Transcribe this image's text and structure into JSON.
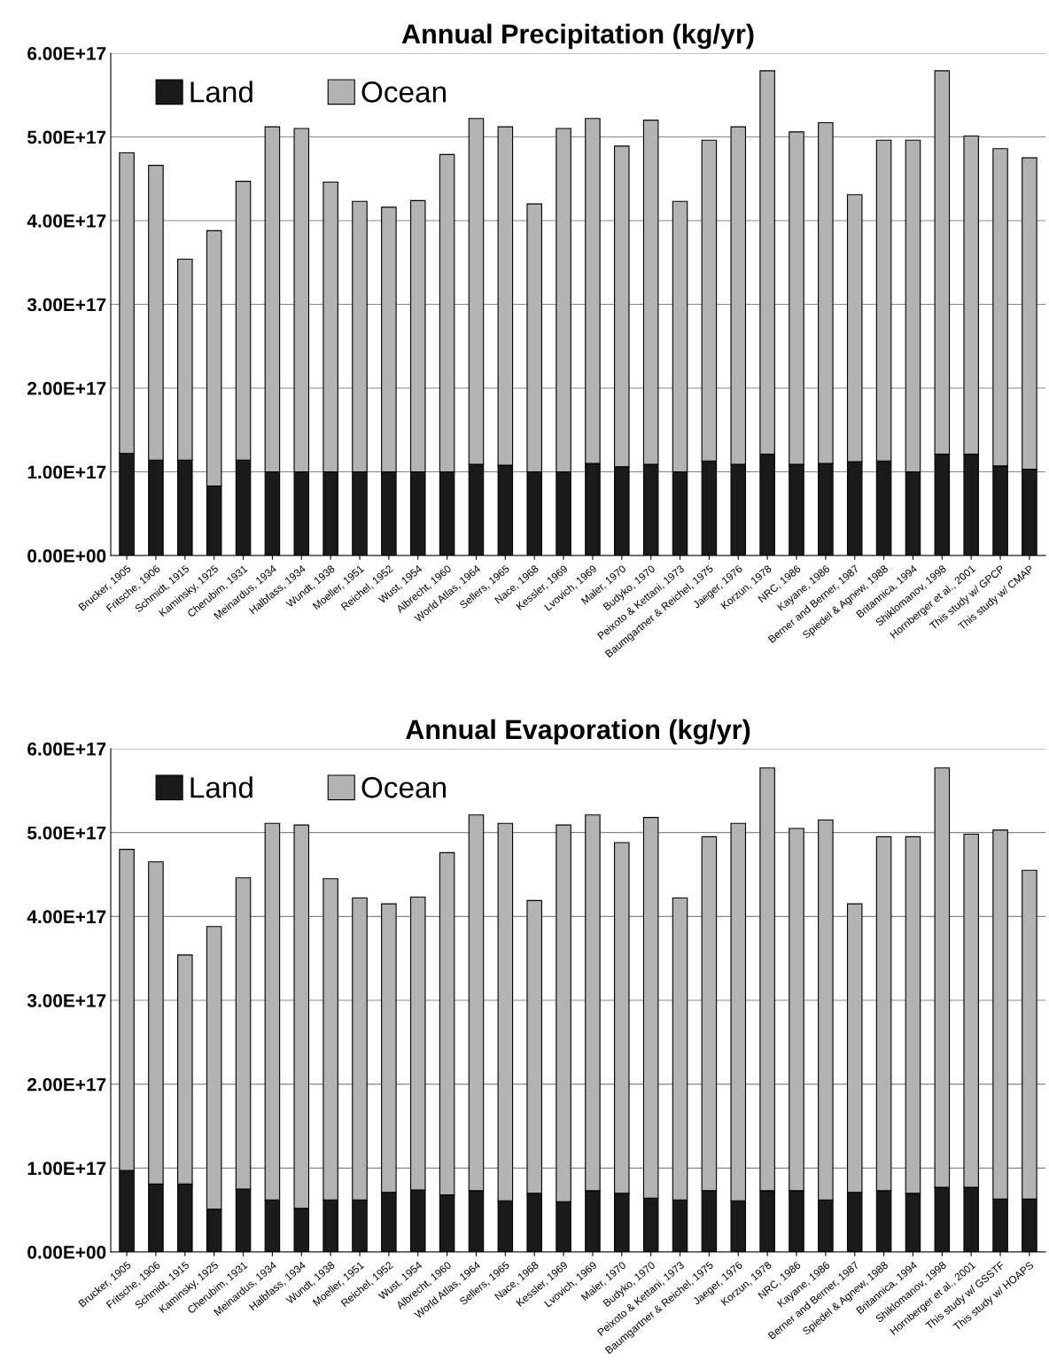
{
  "chart_data": [
    {
      "type": "bar",
      "title": "Annual Precipitation (kg/yr)",
      "stacked": true,
      "grid": "y",
      "legend": "top left",
      "categories": [
        "Brucker, 1905",
        "Fritsche, 1906",
        "Schmidt, 1915",
        "Kaminsky, 1925",
        "Cherubim, 1931",
        "Meinardus, 1934",
        "Halbfass, 1934",
        "Wundt, 1938",
        "Moeller, 1951",
        "Reichel, 1952",
        "Wust, 1954",
        "Albrecht, 1960",
        "World Atlas, 1964",
        "Sellers, 1965",
        "Nace, 1968",
        "Kessler, 1969",
        "Lvovich, 1969",
        "Maler, 1970",
        "Budyko, 1970",
        "Peixoto & Kettani, 1973",
        "Baumgartner & Reichel, 1975",
        "Jaeger, 1976",
        "Korzun, 1978",
        "NRC, 1986",
        "Kayane, 1986",
        "Berner and Berner, 1987",
        "Spiedel & Agnew, 1988",
        "Britannica, 1994",
        "Shiklomanov, 1998",
        "Hornberger et al., 2001",
        "This study w/ GPCP",
        "This study w/ CMAP"
      ],
      "series": [
        {
          "name": "Land",
          "color": "#1a1a1a",
          "values": [
            1.22e+17,
            1.14e+17,
            1.14e+17,
            8.3e+16,
            1.14e+17,
            1e+17,
            1e+17,
            1e+17,
            1e+17,
            1e+17,
            1e+17,
            1e+17,
            1.09e+17,
            1.08e+17,
            1e+17,
            1e+17,
            1.1e+17,
            1.06e+17,
            1.09e+17,
            1e+17,
            1.13e+17,
            1.09e+17,
            1.21e+17,
            1.09e+17,
            1.1e+17,
            1.12e+17,
            1.13e+17,
            1e+17,
            1.21e+17,
            1.21e+17,
            1.07e+17,
            1.03e+17
          ]
        },
        {
          "name": "Ocean",
          "color": "#b3b3b3",
          "values": [
            3.59e+17,
            3.52e+17,
            2.4e+17,
            3.05e+17,
            3.33e+17,
            4.12e+17,
            4.1e+17,
            3.46e+17,
            3.23e+17,
            3.16e+17,
            3.24e+17,
            3.79e+17,
            4.13e+17,
            4.04e+17,
            3.2e+17,
            4.1e+17,
            4.12e+17,
            3.83e+17,
            4.11e+17,
            3.23e+17,
            3.83e+17,
            4.03e+17,
            4.58e+17,
            3.97e+17,
            4.07e+17,
            3.19e+17,
            3.83e+17,
            3.96e+17,
            4.58e+17,
            3.8e+17,
            3.79e+17,
            3.72e+17
          ]
        }
      ],
      "ylim": [
        0,
        6e+17
      ],
      "yticks": [
        {
          "value": 0,
          "label": "0.00E+00"
        },
        {
          "value": 1e+17,
          "label": "1.00E+17"
        },
        {
          "value": 2e+17,
          "label": "2.00E+17"
        },
        {
          "value": 3e+17,
          "label": "3.00E+17"
        },
        {
          "value": 4e+17,
          "label": "4.00E+17"
        },
        {
          "value": 5e+17,
          "label": "5.00E+17"
        },
        {
          "value": 6e+17,
          "label": "6.00E+17"
        }
      ]
    },
    {
      "type": "bar",
      "title": "Annual Evaporation (kg/yr)",
      "stacked": true,
      "grid": "y",
      "legend": "top left",
      "categories": [
        "Brucker, 1905",
        "Fritsche, 1906",
        "Schmidt, 1915",
        "Kaminsky, 1925",
        "Cherubim, 1931",
        "Meinardus, 1934",
        "Halbfass, 1934",
        "Wundt, 1938",
        "Moeller, 1951",
        "Reichel, 1952",
        "Wust, 1954",
        "Albrecht, 1960",
        "World Atlas, 1964",
        "Sellers, 1965",
        "Nace, 1968",
        "Kessler, 1969",
        "Lvovich, 1969",
        "Maler, 1970",
        "Budyko, 1970",
        "Peixoto & Kettani, 1973",
        "Baumgartner & Reichel, 1975",
        "Jaeger, 1976",
        "Korzun, 1978",
        "NRC, 1986",
        "Kayane, 1986",
        "Berner and Berner, 1987",
        "Spiedel & Agnew, 1988",
        "Britannica, 1994",
        "Shiklomanov, 1998",
        "Hornberger et al., 2001",
        "This study w/ GSSTF",
        "This study w/ HOAPS"
      ],
      "series": [
        {
          "name": "Land",
          "color": "#1a1a1a",
          "values": [
            9.7e+16,
            8.1e+16,
            8.1e+16,
            5.1e+16,
            7.5e+16,
            6.2e+16,
            5.2e+16,
            6.2e+16,
            6.2e+16,
            7.1e+16,
            7.4e+16,
            6.8e+16,
            7.3e+16,
            6.1e+16,
            7e+16,
            6e+16,
            7.3e+16,
            7e+16,
            6.4e+16,
            6.2e+16,
            7.3e+16,
            6.1e+16,
            7.3e+16,
            7.3e+16,
            6.2e+16,
            7.1e+16,
            7.3e+16,
            7e+16,
            7.7e+16,
            7.7e+16,
            6.3e+16,
            6.3e+16
          ]
        },
        {
          "name": "Ocean",
          "color": "#b3b3b3",
          "values": [
            3.83e+17,
            3.84e+17,
            2.73e+17,
            3.37e+17,
            3.71e+17,
            4.49e+17,
            4.57e+17,
            3.83e+17,
            3.6e+17,
            3.44e+17,
            3.49e+17,
            4.08e+17,
            4.48e+17,
            4.5e+17,
            3.49e+17,
            4.49e+17,
            4.48e+17,
            4.18e+17,
            4.54e+17,
            3.6e+17,
            4.22e+17,
            4.5e+17,
            5.04e+17,
            4.32e+17,
            4.53e+17,
            3.44e+17,
            4.22e+17,
            4.25e+17,
            5e+17,
            4.21e+17,
            4.4e+17,
            3.92e+17
          ]
        }
      ],
      "ylim": [
        0,
        6e+17
      ],
      "yticks": [
        {
          "value": 0,
          "label": "0.00E+00"
        },
        {
          "value": 1e+17,
          "label": "1.00E+17"
        },
        {
          "value": 2e+17,
          "label": "2.00E+17"
        },
        {
          "value": 3e+17,
          "label": "3.00E+17"
        },
        {
          "value": 4e+17,
          "label": "4.00E+17"
        },
        {
          "value": 5e+17,
          "label": "5.00E+17"
        },
        {
          "value": 6e+17,
          "label": "6.00E+17"
        }
      ]
    }
  ]
}
